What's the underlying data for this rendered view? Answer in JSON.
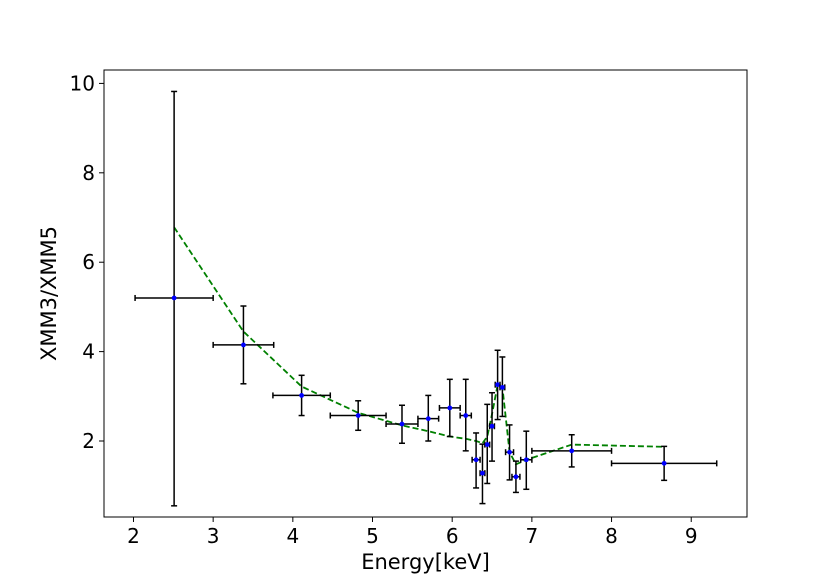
{
  "chart_data": {
    "type": "scatter",
    "title": "",
    "xlabel": "Energy[keV]",
    "ylabel": "XMM3/XMM5",
    "xlim": [
      1.63,
      9.7
    ],
    "ylim": [
      0.3,
      10.3
    ],
    "xticks": [
      2,
      3,
      4,
      5,
      6,
      7,
      8,
      9
    ],
    "yticks": [
      2,
      4,
      6,
      8,
      10
    ],
    "grid": false,
    "series": [
      {
        "name": "data",
        "style": "errorbar",
        "points": [
          {
            "x": 2.51,
            "y": 5.2,
            "xerr": 0.49,
            "ylo": 0.55,
            "yhi": 9.82
          },
          {
            "x": 3.38,
            "y": 4.15,
            "xerr": 0.38,
            "ylo": 3.28,
            "yhi": 5.02
          },
          {
            "x": 4.11,
            "y": 3.02,
            "xerr": 0.36,
            "ylo": 2.57,
            "yhi": 3.47
          },
          {
            "x": 4.82,
            "y": 2.57,
            "xerr": 0.35,
            "ylo": 2.24,
            "yhi": 2.9
          },
          {
            "x": 5.37,
            "y": 2.38,
            "xerr": 0.2,
            "ylo": 1.95,
            "yhi": 2.8
          },
          {
            "x": 5.7,
            "y": 2.5,
            "xerr": 0.13,
            "ylo": 2.0,
            "yhi": 3.02
          },
          {
            "x": 5.97,
            "y": 2.74,
            "xerr": 0.13,
            "ylo": 2.1,
            "yhi": 3.38
          },
          {
            "x": 6.17,
            "y": 2.57,
            "xerr": 0.07,
            "ylo": 1.78,
            "yhi": 3.38
          },
          {
            "x": 6.3,
            "y": 1.58,
            "xerr": 0.05,
            "ylo": 0.95,
            "yhi": 2.18
          },
          {
            "x": 6.38,
            "y": 1.28,
            "xerr": 0.03,
            "ylo": 0.6,
            "yhi": 1.93
          },
          {
            "x": 6.44,
            "y": 1.92,
            "xerr": 0.03,
            "ylo": 1.05,
            "yhi": 2.82
          },
          {
            "x": 6.5,
            "y": 2.33,
            "xerr": 0.03,
            "ylo": 1.55,
            "yhi": 3.08
          },
          {
            "x": 6.57,
            "y": 3.26,
            "xerr": 0.03,
            "ylo": 2.48,
            "yhi": 4.03
          },
          {
            "x": 6.63,
            "y": 3.2,
            "xerr": 0.03,
            "ylo": 2.55,
            "yhi": 3.88
          },
          {
            "x": 6.72,
            "y": 1.75,
            "xerr": 0.05,
            "ylo": 1.13,
            "yhi": 2.36
          },
          {
            "x": 6.8,
            "y": 1.2,
            "xerr": 0.05,
            "ylo": 0.85,
            "yhi": 1.55
          },
          {
            "x": 6.93,
            "y": 1.58,
            "xerr": 0.07,
            "ylo": 0.92,
            "yhi": 2.22
          },
          {
            "x": 7.5,
            "y": 1.78,
            "xerr": 0.5,
            "ylo": 1.42,
            "yhi": 2.14
          },
          {
            "x": 8.66,
            "y": 1.5,
            "xerr": 0.66,
            "ylo": 1.12,
            "yhi": 1.88
          }
        ]
      },
      {
        "name": "model",
        "style": "dashed-line",
        "x": [
          2.51,
          3.38,
          4.11,
          4.82,
          5.37,
          5.7,
          5.97,
          6.17,
          6.3,
          6.38,
          6.44,
          6.5,
          6.57,
          6.63,
          6.72,
          6.8,
          6.93,
          7.5,
          8.66
        ],
        "y": [
          6.78,
          4.45,
          3.22,
          2.63,
          2.35,
          2.22,
          2.1,
          2.05,
          2.0,
          1.95,
          2.1,
          2.6,
          3.25,
          3.2,
          1.75,
          1.48,
          1.58,
          1.92,
          1.87
        ]
      }
    ]
  },
  "colors": {
    "errorbar": "#000000",
    "marker": "#0000ff",
    "model_line": "#008000",
    "axes": "#000000"
  }
}
